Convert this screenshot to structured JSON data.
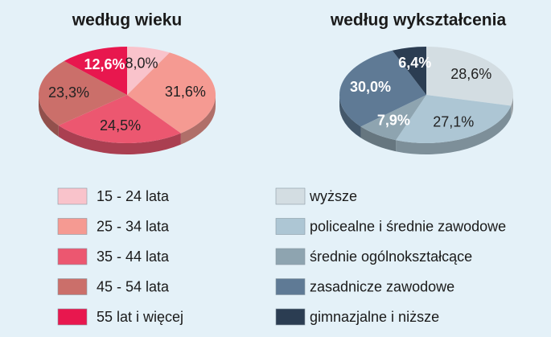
{
  "chart_data": [
    {
      "type": "pie",
      "title": "według wieku",
      "categories": [
        "15 - 24 lata",
        "25 - 34 lata",
        "35 - 44 lata",
        "45 - 54 lata",
        "55 lat i więcej"
      ],
      "values": [
        8.0,
        31.6,
        24.5,
        23.3,
        12.6
      ],
      "value_labels": [
        "8,0%",
        "31,6%",
        "24,5%",
        "23,3%",
        "12,6%"
      ],
      "colors": [
        "#f9c3cb",
        "#f59a92",
        "#ec5770",
        "#cb6f6a",
        "#e8174e"
      ],
      "label_colors": [
        "#222222",
        "#222222",
        "#222222",
        "#222222",
        "#ffffff"
      ]
    },
    {
      "type": "pie",
      "title": "według wykształcenia",
      "categories": [
        "wyższe",
        "policealne i średnie zawodowe",
        "średnie ogólnokształcące",
        "zasadnicze zawodowe",
        "gimnazjalne i niższe"
      ],
      "values": [
        28.6,
        27.1,
        7.9,
        30.0,
        6.4
      ],
      "value_labels": [
        "28,6%",
        "27,1%",
        "7,9%",
        "30,0%",
        "6,4%"
      ],
      "colors": [
        "#d3dde2",
        "#adc6d4",
        "#8ea4b0",
        "#5f7a95",
        "#2b3d52"
      ],
      "label_colors": [
        "#222222",
        "#222222",
        "#ffffff",
        "#ffffff",
        "#ffffff"
      ]
    }
  ]
}
